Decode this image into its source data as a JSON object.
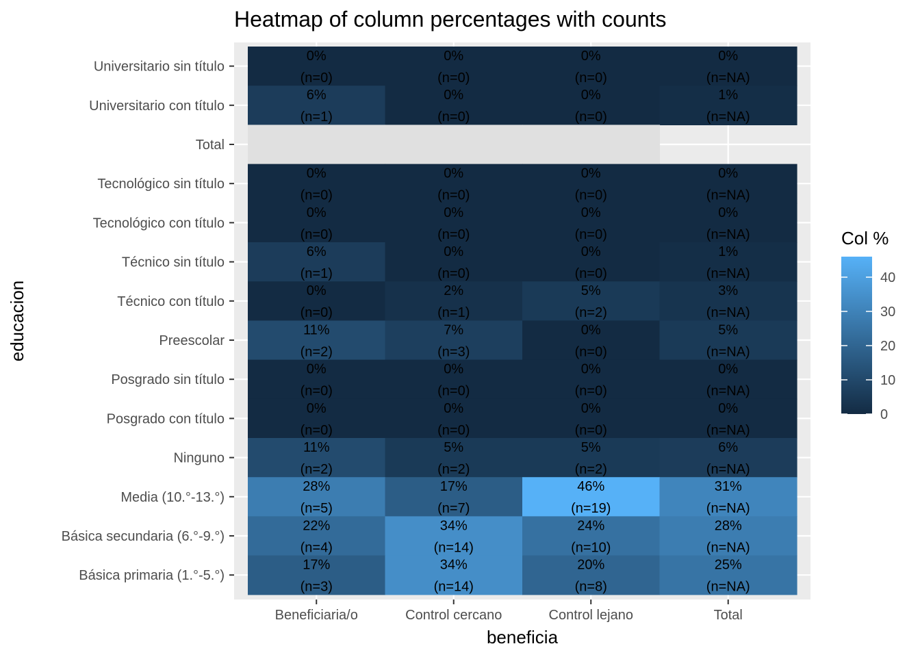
{
  "chart_data": {
    "type": "heatmap",
    "title": "Heatmap of column percentages with counts",
    "xlabel": "beneficia",
    "ylabel": "educacion",
    "x_categories": [
      "Beneficiaria/o",
      "Control cercano",
      "Control lejano",
      "Total"
    ],
    "y_categories": [
      "Universitario sin título",
      "Universitario con título",
      "Total",
      "Tecnológico sin título",
      "Tecnológico con título",
      "Técnico sin título",
      "Técnico con título",
      "Preescolar",
      "Posgrado sin título",
      "Posgrado con título",
      "Ninguno",
      "Media (10.°-13.°)",
      "Básica secundaria (6.°-9.°)",
      "Básica primaria (1.°-5.°)"
    ],
    "cells": [
      {
        "y": "Universitario sin título",
        "x": "Beneficiaria/o",
        "value": 0,
        "pct": "0%",
        "n": "(n=0)"
      },
      {
        "y": "Universitario sin título",
        "x": "Control cercano",
        "value": 0,
        "pct": "0%",
        "n": "(n=0)"
      },
      {
        "y": "Universitario sin título",
        "x": "Control lejano",
        "value": 0,
        "pct": "0%",
        "n": "(n=0)"
      },
      {
        "y": "Universitario sin título",
        "x": "Total",
        "value": 0,
        "pct": "0%",
        "n": "(n=NA)"
      },
      {
        "y": "Universitario con título",
        "x": "Beneficiaria/o",
        "value": 6,
        "pct": "6%",
        "n": "(n=1)"
      },
      {
        "y": "Universitario con título",
        "x": "Control cercano",
        "value": 0,
        "pct": "0%",
        "n": "(n=0)"
      },
      {
        "y": "Universitario con título",
        "x": "Control lejano",
        "value": 0,
        "pct": "0%",
        "n": "(n=0)"
      },
      {
        "y": "Universitario con título",
        "x": "Total",
        "value": 1,
        "pct": "1%",
        "n": "(n=NA)"
      },
      {
        "y": "Total",
        "x": "Beneficiaria/o",
        "value": null,
        "pct": "",
        "n": ""
      },
      {
        "y": "Total",
        "x": "Control cercano",
        "value": null,
        "pct": "",
        "n": ""
      },
      {
        "y": "Total",
        "x": "Control lejano",
        "value": null,
        "pct": "",
        "n": ""
      },
      {
        "y": "Tecnológico sin título",
        "x": "Beneficiaria/o",
        "value": 0,
        "pct": "0%",
        "n": "(n=0)"
      },
      {
        "y": "Tecnológico sin título",
        "x": "Control cercano",
        "value": 0,
        "pct": "0%",
        "n": "(n=0)"
      },
      {
        "y": "Tecnológico sin título",
        "x": "Control lejano",
        "value": 0,
        "pct": "0%",
        "n": "(n=0)"
      },
      {
        "y": "Tecnológico sin título",
        "x": "Total",
        "value": 0,
        "pct": "0%",
        "n": "(n=NA)"
      },
      {
        "y": "Tecnológico con título",
        "x": "Beneficiaria/o",
        "value": 0,
        "pct": "0%",
        "n": "(n=0)"
      },
      {
        "y": "Tecnológico con título",
        "x": "Control cercano",
        "value": 0,
        "pct": "0%",
        "n": "(n=0)"
      },
      {
        "y": "Tecnológico con título",
        "x": "Control lejano",
        "value": 0,
        "pct": "0%",
        "n": "(n=0)"
      },
      {
        "y": "Tecnológico con título",
        "x": "Total",
        "value": 0,
        "pct": "0%",
        "n": "(n=NA)"
      },
      {
        "y": "Técnico sin título",
        "x": "Beneficiaria/o",
        "value": 6,
        "pct": "6%",
        "n": "(n=1)"
      },
      {
        "y": "Técnico sin título",
        "x": "Control cercano",
        "value": 0,
        "pct": "0%",
        "n": "(n=0)"
      },
      {
        "y": "Técnico sin título",
        "x": "Control lejano",
        "value": 0,
        "pct": "0%",
        "n": "(n=0)"
      },
      {
        "y": "Técnico sin título",
        "x": "Total",
        "value": 1,
        "pct": "1%",
        "n": "(n=NA)"
      },
      {
        "y": "Técnico con título",
        "x": "Beneficiaria/o",
        "value": 0,
        "pct": "0%",
        "n": "(n=0)"
      },
      {
        "y": "Técnico con título",
        "x": "Control cercano",
        "value": 2,
        "pct": "2%",
        "n": "(n=1)"
      },
      {
        "y": "Técnico con título",
        "x": "Control lejano",
        "value": 5,
        "pct": "5%",
        "n": "(n=2)"
      },
      {
        "y": "Técnico con título",
        "x": "Total",
        "value": 3,
        "pct": "3%",
        "n": "(n=NA)"
      },
      {
        "y": "Preescolar",
        "x": "Beneficiaria/o",
        "value": 11,
        "pct": "11%",
        "n": "(n=2)"
      },
      {
        "y": "Preescolar",
        "x": "Control cercano",
        "value": 7,
        "pct": "7%",
        "n": "(n=3)"
      },
      {
        "y": "Preescolar",
        "x": "Control lejano",
        "value": 0,
        "pct": "0%",
        "n": "(n=0)"
      },
      {
        "y": "Preescolar",
        "x": "Total",
        "value": 5,
        "pct": "5%",
        "n": "(n=NA)"
      },
      {
        "y": "Posgrado sin título",
        "x": "Beneficiaria/o",
        "value": 0,
        "pct": "0%",
        "n": "(n=0)"
      },
      {
        "y": "Posgrado sin título",
        "x": "Control cercano",
        "value": 0,
        "pct": "0%",
        "n": "(n=0)"
      },
      {
        "y": "Posgrado sin título",
        "x": "Control lejano",
        "value": 0,
        "pct": "0%",
        "n": "(n=0)"
      },
      {
        "y": "Posgrado sin título",
        "x": "Total",
        "value": 0,
        "pct": "0%",
        "n": "(n=NA)"
      },
      {
        "y": "Posgrado con título",
        "x": "Beneficiaria/o",
        "value": 0,
        "pct": "0%",
        "n": "(n=0)"
      },
      {
        "y": "Posgrado con título",
        "x": "Control cercano",
        "value": 0,
        "pct": "0%",
        "n": "(n=0)"
      },
      {
        "y": "Posgrado con título",
        "x": "Control lejano",
        "value": 0,
        "pct": "0%",
        "n": "(n=0)"
      },
      {
        "y": "Posgrado con título",
        "x": "Total",
        "value": 0,
        "pct": "0%",
        "n": "(n=NA)"
      },
      {
        "y": "Ninguno",
        "x": "Beneficiaria/o",
        "value": 11,
        "pct": "11%",
        "n": "(n=2)"
      },
      {
        "y": "Ninguno",
        "x": "Control cercano",
        "value": 5,
        "pct": "5%",
        "n": "(n=2)"
      },
      {
        "y": "Ninguno",
        "x": "Control lejano",
        "value": 5,
        "pct": "5%",
        "n": "(n=2)"
      },
      {
        "y": "Ninguno",
        "x": "Total",
        "value": 6,
        "pct": "6%",
        "n": "(n=NA)"
      },
      {
        "y": "Media (10.°-13.°)",
        "x": "Beneficiaria/o",
        "value": 28,
        "pct": "28%",
        "n": "(n=5)"
      },
      {
        "y": "Media (10.°-13.°)",
        "x": "Control cercano",
        "value": 17,
        "pct": "17%",
        "n": "(n=7)"
      },
      {
        "y": "Media (10.°-13.°)",
        "x": "Control lejano",
        "value": 46,
        "pct": "46%",
        "n": "(n=19)"
      },
      {
        "y": "Media (10.°-13.°)",
        "x": "Total",
        "value": 31,
        "pct": "31%",
        "n": "(n=NA)"
      },
      {
        "y": "Básica secundaria (6.°-9.°)",
        "x": "Beneficiaria/o",
        "value": 22,
        "pct": "22%",
        "n": "(n=4)"
      },
      {
        "y": "Básica secundaria (6.°-9.°)",
        "x": "Control cercano",
        "value": 34,
        "pct": "34%",
        "n": "(n=14)"
      },
      {
        "y": "Básica secundaria (6.°-9.°)",
        "x": "Control lejano",
        "value": 24,
        "pct": "24%",
        "n": "(n=10)"
      },
      {
        "y": "Básica secundaria (6.°-9.°)",
        "x": "Total",
        "value": 28,
        "pct": "28%",
        "n": "(n=NA)"
      },
      {
        "y": "Básica primaria (1.°-5.°)",
        "x": "Beneficiaria/o",
        "value": 17,
        "pct": "17%",
        "n": "(n=3)"
      },
      {
        "y": "Básica primaria (1.°-5.°)",
        "x": "Control cercano",
        "value": 34,
        "pct": "34%",
        "n": "(n=14)"
      },
      {
        "y": "Básica primaria (1.°-5.°)",
        "x": "Control lejano",
        "value": 20,
        "pct": "20%",
        "n": "(n=8)"
      },
      {
        "y": "Básica primaria (1.°-5.°)",
        "x": "Total",
        "value": 25,
        "pct": "25%",
        "n": "(n=NA)"
      }
    ],
    "color_scale": {
      "low": "#132B43",
      "high": "#56B1F7",
      "limits": [
        0,
        46
      ],
      "na_color": "#e0e0e0"
    },
    "legend": {
      "title": "Col %",
      "ticks": [
        0,
        10,
        20,
        30,
        40
      ],
      "tick_labels": [
        "0",
        "10",
        "20",
        "30",
        "40"
      ],
      "position": "right"
    },
    "panel_background": "#EBEBEB",
    "grid": true
  }
}
